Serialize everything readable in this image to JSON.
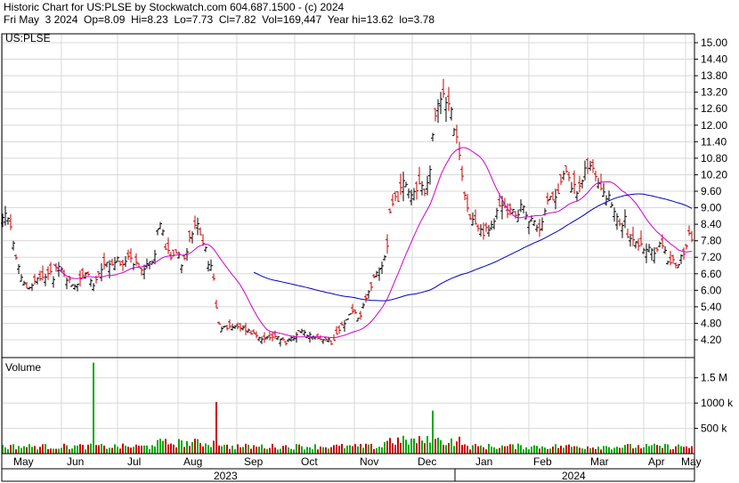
{
  "header": {
    "line1": "Historic Chart for US:PLSE by Stockwatch.com 604.687.1500 - (c) 2024",
    "line2": "Fri May  3 2024  Op=8.09  Hi=8.23  Lo=7.73  Cl=7.82  Vol=169,447  Year hi=13.62  lo=3.78"
  },
  "chart_data": {
    "type": "ohlc",
    "symbol": "US:PLSE",
    "price_axis": {
      "ticks": [
        "15.00",
        "14.40",
        "13.80",
        "13.20",
        "12.60",
        "12.00",
        "11.40",
        "10.80",
        "10.20",
        "9.60",
        "9.00",
        "8.40",
        "7.80",
        "7.20",
        "6.60",
        "6.00",
        "5.40",
        "4.80",
        "4.20"
      ],
      "ylim": [
        3.7,
        15.5
      ]
    },
    "volume_panel": {
      "label": "Volume",
      "ticks": [
        "1.5 M",
        "1000 k",
        "500 k"
      ],
      "tick_values": [
        1500000,
        1000000,
        500000
      ],
      "ylim": [
        0,
        1900000
      ]
    },
    "months": [
      "May",
      "Jun",
      "Jul",
      "Aug",
      "Sep",
      "Oct",
      "Nov",
      "Dec",
      "Jan",
      "Feb",
      "Mar",
      "Apr",
      "May"
    ],
    "years": [
      "2023",
      "2024"
    ],
    "anchors": [
      [
        0,
        8.2
      ],
      [
        3,
        8.6
      ],
      [
        6,
        8.9
      ],
      [
        10,
        8.4
      ],
      [
        14,
        8.0
      ],
      [
        18,
        7.1
      ],
      [
        24,
        6.4
      ],
      [
        30,
        6.1
      ],
      [
        36,
        6.2
      ],
      [
        42,
        6.4
      ],
      [
        46,
        6.3
      ],
      [
        52,
        6.6
      ],
      [
        56,
        6.8
      ],
      [
        60,
        6.5
      ],
      [
        64,
        6.9
      ],
      [
        70,
        6.7
      ],
      [
        76,
        6.4
      ],
      [
        82,
        6.2
      ],
      [
        88,
        6.3
      ],
      [
        92,
        6.6
      ],
      [
        100,
        6.5
      ],
      [
        104,
        6.1
      ],
      [
        110,
        6.4
      ],
      [
        114,
        6.8
      ],
      [
        120,
        7.0
      ],
      [
        126,
        7.0
      ],
      [
        132,
        7.1
      ],
      [
        138,
        6.9
      ],
      [
        144,
        7.2
      ],
      [
        150,
        7.0
      ],
      [
        156,
        6.8
      ],
      [
        160,
        6.6
      ],
      [
        164,
        6.8
      ],
      [
        170,
        7.1
      ],
      [
        174,
        7.2
      ],
      [
        178,
        8.6
      ],
      [
        182,
        8.3
      ],
      [
        186,
        7.6
      ],
      [
        192,
        7.3
      ],
      [
        198,
        7.4
      ],
      [
        204,
        7.0
      ],
      [
        210,
        7.4
      ],
      [
        214,
        8.0
      ],
      [
        218,
        8.2
      ],
      [
        222,
        8.3
      ],
      [
        226,
        8.0
      ],
      [
        230,
        7.6
      ],
      [
        234,
        7.0
      ],
      [
        238,
        6.8
      ],
      [
        240,
        6.4
      ],
      [
        242,
        5.6
      ],
      [
        244,
        5.0
      ],
      [
        246,
        4.7
      ],
      [
        250,
        4.6
      ],
      [
        256,
        4.7
      ],
      [
        262,
        4.7
      ],
      [
        268,
        4.6
      ],
      [
        274,
        4.6
      ],
      [
        280,
        4.5
      ],
      [
        286,
        4.4
      ],
      [
        290,
        4.3
      ],
      [
        296,
        4.3
      ],
      [
        302,
        4.2
      ],
      [
        308,
        4.3
      ],
      [
        314,
        4.3
      ],
      [
        320,
        4.1
      ],
      [
        326,
        4.2
      ],
      [
        332,
        4.3
      ],
      [
        338,
        4.5
      ],
      [
        344,
        4.4
      ],
      [
        350,
        4.3
      ],
      [
        356,
        4.3
      ],
      [
        362,
        4.2
      ],
      [
        368,
        4.2
      ],
      [
        372,
        4.1
      ],
      [
        376,
        4.3
      ],
      [
        380,
        4.5
      ],
      [
        384,
        4.7
      ],
      [
        388,
        4.8
      ],
      [
        392,
        5.1
      ],
      [
        396,
        5.3
      ],
      [
        400,
        5.1
      ],
      [
        404,
        5.0
      ],
      [
        408,
        5.4
      ],
      [
        412,
        5.9
      ],
      [
        416,
        6.1
      ],
      [
        420,
        6.4
      ],
      [
        424,
        6.6
      ],
      [
        428,
        6.8
      ],
      [
        432,
        7.2
      ],
      [
        436,
        7.9
      ],
      [
        438,
        8.8
      ],
      [
        442,
        9.4
      ],
      [
        446,
        9.3
      ],
      [
        450,
        9.6
      ],
      [
        454,
        9.9
      ],
      [
        458,
        9.6
      ],
      [
        462,
        9.4
      ],
      [
        466,
        9.6
      ],
      [
        470,
        9.7
      ],
      [
        474,
        9.8
      ],
      [
        478,
        9.6
      ],
      [
        482,
        10.2
      ],
      [
        486,
        11.6
      ],
      [
        490,
        12.4
      ],
      [
        494,
        12.8
      ],
      [
        498,
        13.1
      ],
      [
        502,
        12.9
      ],
      [
        506,
        12.6
      ],
      [
        510,
        12.0
      ],
      [
        514,
        11.2
      ],
      [
        518,
        10.3
      ],
      [
        522,
        9.4
      ],
      [
        526,
        8.9
      ],
      [
        530,
        8.6
      ],
      [
        534,
        8.4
      ],
      [
        538,
        8.2
      ],
      [
        542,
        8.0
      ],
      [
        546,
        8.2
      ],
      [
        552,
        8.3
      ],
      [
        556,
        8.6
      ],
      [
        560,
        9.2
      ],
      [
        566,
        9.0
      ],
      [
        570,
        8.9
      ],
      [
        576,
        8.8
      ],
      [
        582,
        8.9
      ],
      [
        586,
        9.3
      ],
      [
        590,
        8.9
      ],
      [
        594,
        8.6
      ],
      [
        598,
        8.5
      ],
      [
        602,
        8.3
      ],
      [
        606,
        8.1
      ],
      [
        610,
        8.7
      ],
      [
        614,
        9.1
      ],
      [
        620,
        9.4
      ],
      [
        626,
        9.6
      ],
      [
        630,
        9.9
      ],
      [
        634,
        10.5
      ],
      [
        638,
        10.2
      ],
      [
        642,
        9.8
      ],
      [
        646,
        9.7
      ],
      [
        650,
        9.6
      ],
      [
        654,
        9.9
      ],
      [
        658,
        10.4
      ],
      [
        662,
        10.6
      ],
      [
        666,
        10.4
      ],
      [
        670,
        10.1
      ],
      [
        674,
        9.9
      ],
      [
        678,
        9.6
      ],
      [
        682,
        9.4
      ],
      [
        686,
        9.2
      ],
      [
        690,
        8.8
      ],
      [
        694,
        8.5
      ],
      [
        698,
        8.2
      ],
      [
        702,
        8.6
      ],
      [
        706,
        7.6
      ],
      [
        710,
        7.9
      ],
      [
        714,
        7.8
      ],
      [
        718,
        7.7
      ],
      [
        722,
        7.5
      ],
      [
        726,
        7.4
      ],
      [
        730,
        7.6
      ],
      [
        734,
        7.3
      ],
      [
        738,
        7.6
      ],
      [
        742,
        7.8
      ],
      [
        746,
        7.5
      ],
      [
        750,
        7.0
      ],
      [
        754,
        7.1
      ],
      [
        758,
        6.9
      ],
      [
        762,
        7.0
      ],
      [
        766,
        7.2
      ],
      [
        770,
        7.6
      ],
      [
        774,
        8.0
      ],
      [
        778,
        7.9
      ]
    ],
    "volume_spikes": [
      [
        104,
        1800000
      ],
      [
        244,
        1020000
      ],
      [
        438,
        310000
      ],
      [
        486,
        850000
      ]
    ],
    "overlays": [
      {
        "kind": "moving-average",
        "color": "#d000d0"
      },
      {
        "kind": "moving-average",
        "color": "#0000c0"
      }
    ],
    "colors": {
      "up": "#000000",
      "down": "#cc0000",
      "vol_up": "#00aa00",
      "vol_down": "#cc0000",
      "grid": "#d8d8d8"
    }
  }
}
